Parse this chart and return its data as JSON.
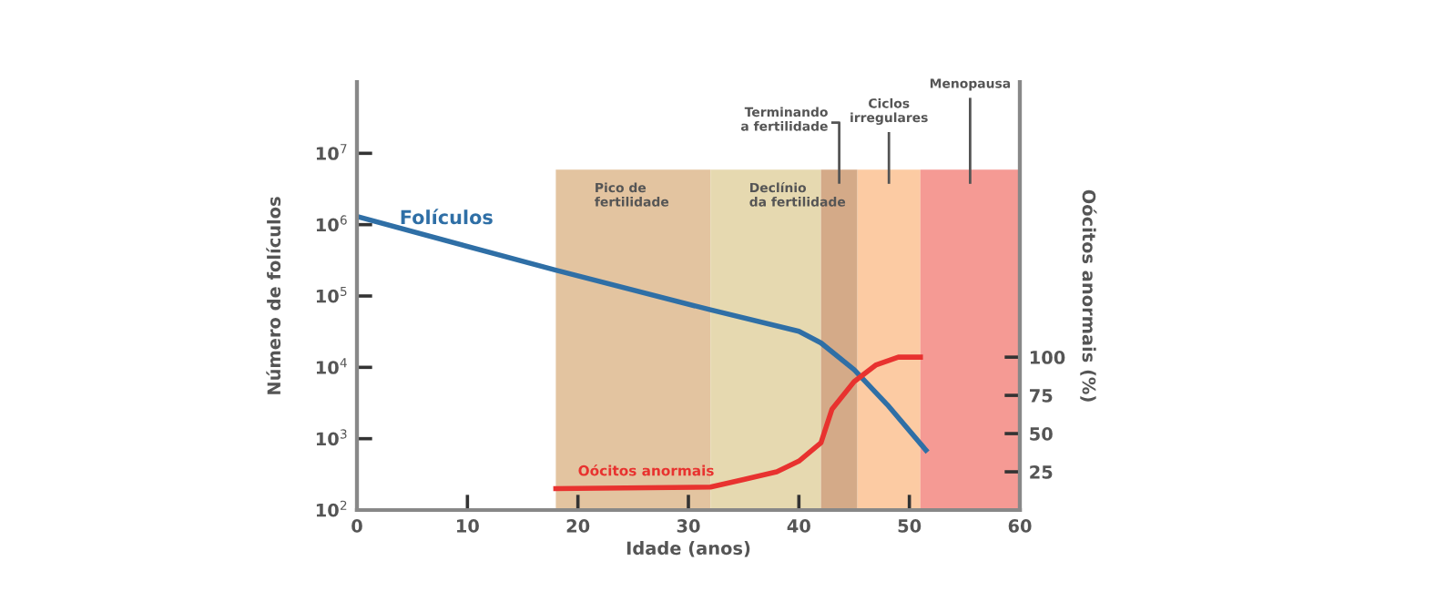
{
  "chart_data": {
    "type": "line",
    "xlabel": "Idade (anos)",
    "ylabel": "Número de folículos",
    "y2label": "Oócitos anormais (%)",
    "log": "y",
    "xlim": [
      0,
      60
    ],
    "xticks": [
      0,
      10,
      20,
      30,
      40,
      50,
      60
    ],
    "ylim": [
      100,
      100000000
    ],
    "yticks": [
      {
        "value": 100,
        "label": "10$^{2}$"
      },
      {
        "value": 1000,
        "label": "10$^{3}$"
      },
      {
        "value": 10000,
        "label": "10$^{4}$"
      },
      {
        "value": 100000,
        "label": "10$^{5}$"
      },
      {
        "value": 1000000,
        "label": "10$^{6}$"
      },
      {
        "value": 10000000,
        "label": "10$^{7}$"
      }
    ],
    "y2lim": [
      0,
      280
    ],
    "y2ticks": [
      25,
      50,
      75,
      100
    ],
    "grid": false,
    "legend": false,
    "marker": "none",
    "line_style": "solid",
    "series": [
      {
        "name": "Folículos",
        "color": "#2f6fa6",
        "x": [
          0,
          18,
          32,
          40,
          42,
          45,
          48,
          51.5
        ],
        "values": [
          1300000,
          230000,
          64000,
          32000,
          22000,
          9300,
          3000,
          690
        ]
      },
      {
        "name": "Oócitos anormais",
        "color": "#e8322f",
        "axis": "y2",
        "x": [
          18,
          32,
          35,
          38,
          40,
          42,
          43,
          45,
          47,
          49,
          51
        ],
        "values": [
          14,
          15,
          20,
          25,
          32,
          44,
          66,
          84,
          95,
          100,
          100
        ]
      }
    ],
    "bands": [
      {
        "axis": "x",
        "from": 18,
        "to": 32,
        "label": "Pico de\nfertilidade",
        "color": "#e3c4a0"
      },
      {
        "axis": "x",
        "from": 32,
        "to": 42,
        "label": "Declínio\nda fertilidade",
        "color": "#e6d9b0"
      },
      {
        "axis": "x",
        "from": 42,
        "to": 45.3,
        "label": "Terminando\na fertilidade",
        "color": "#d4aa88"
      },
      {
        "axis": "x",
        "from": 45.3,
        "to": 51,
        "label": "Ciclos\nirregulares",
        "color": "#fccba3"
      },
      {
        "axis": "x",
        "from": 51,
        "to": 60,
        "label": "Menopausa",
        "color": "#f59a94"
      }
    ]
  }
}
